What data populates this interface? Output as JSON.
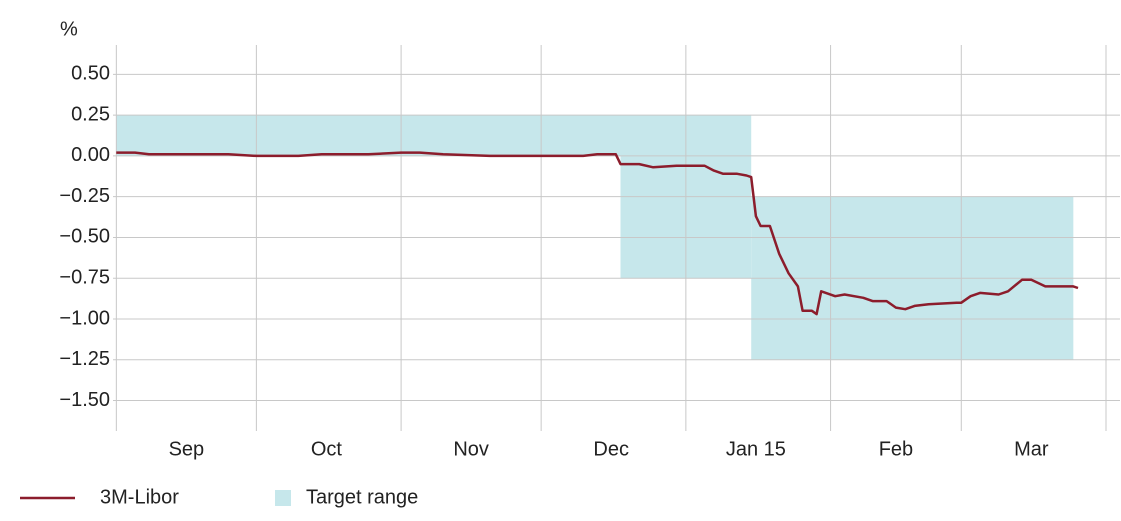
{
  "chart_data": {
    "type": "line",
    "y_label": "%",
    "xlim": [
      "2014-08-27",
      "2015-04-04"
    ],
    "ylim": [
      -1.65,
      0.68
    ],
    "yticks": [
      {
        "value": 0.5,
        "label": "0.50"
      },
      {
        "value": 0.25,
        "label": "0.25"
      },
      {
        "value": 0,
        "label": "0.00"
      },
      {
        "value": -0.25,
        "label": "−0.25"
      },
      {
        "value": -0.5,
        "label": "−0.50"
      },
      {
        "value": -0.75,
        "label": "−0.75"
      },
      {
        "value": -1,
        "label": "−1.00"
      },
      {
        "value": -1.25,
        "label": "−1.25"
      },
      {
        "value": -1.5,
        "label": "−1.50"
      }
    ],
    "xgrid": [
      "2014-09-01",
      "2014-10-01",
      "2014-11-01",
      "2014-12-01",
      "2015-01-01",
      "2015-02-01",
      "2015-03-01",
      "2015-04-01"
    ],
    "xticks": [
      {
        "value": "2014-09-16",
        "label": "Sep"
      },
      {
        "value": "2014-10-16",
        "label": "Oct"
      },
      {
        "value": "2014-11-16",
        "label": "Nov"
      },
      {
        "value": "2014-12-16",
        "label": "Dec"
      },
      {
        "value": "2015-01-16",
        "label": "Jan 15"
      },
      {
        "value": "2015-02-15",
        "label": "Feb"
      },
      {
        "value": "2015-03-16",
        "label": "Mar"
      }
    ],
    "grid": true,
    "band": {
      "name": "Target range",
      "color": "#c6e7eb",
      "edges": [
        "2014-09-01",
        "2014-12-18",
        "2015-01-15",
        "2015-03-25"
      ],
      "upper": [
        0.25,
        0.25,
        -0.25
      ],
      "lower": [
        0,
        -0.75,
        -1.25
      ]
    },
    "series": [
      {
        "name": "3M-Libor",
        "color": "#8c1d2c",
        "x": [
          "2014-09-01",
          "2014-09-05",
          "2014-09-08",
          "2014-09-15",
          "2014-09-25",
          "2014-10-01",
          "2014-10-10",
          "2014-10-15",
          "2014-10-25",
          "2014-11-01",
          "2014-11-05",
          "2014-11-10",
          "2014-11-20",
          "2014-12-01",
          "2014-12-10",
          "2014-12-13",
          "2014-12-17",
          "2014-12-18",
          "2014-12-22",
          "2014-12-25",
          "2014-12-30",
          "2015-01-05",
          "2015-01-07",
          "2015-01-09",
          "2015-01-12",
          "2015-01-14",
          "2015-01-15",
          "2015-01-16",
          "2015-01-17",
          "2015-01-19",
          "2015-01-21",
          "2015-01-23",
          "2015-01-25",
          "2015-01-26",
          "2015-01-28",
          "2015-01-29",
          "2015-01-30",
          "2015-02-02",
          "2015-02-04",
          "2015-02-08",
          "2015-02-10",
          "2015-02-13",
          "2015-02-15",
          "2015-02-17",
          "2015-02-19",
          "2015-02-22",
          "2015-02-28",
          "2015-03-01",
          "2015-03-03",
          "2015-03-05",
          "2015-03-09",
          "2015-03-11",
          "2015-03-14",
          "2015-03-16",
          "2015-03-19",
          "2015-03-25",
          "2015-03-26"
        ],
        "values": [
          0.02,
          0.02,
          0.01,
          0.01,
          0.01,
          0,
          0,
          0.01,
          0.01,
          0.02,
          0.02,
          0.01,
          0,
          0,
          0,
          0.01,
          0.01,
          -0.05,
          -0.05,
          -0.07,
          -0.06,
          -0.06,
          -0.09,
          -0.11,
          -0.11,
          -0.12,
          -0.13,
          -0.37,
          -0.43,
          -0.43,
          -0.6,
          -0.72,
          -0.8,
          -0.95,
          -0.95,
          -0.97,
          -0.83,
          -0.86,
          -0.85,
          -0.87,
          -0.89,
          -0.89,
          -0.93,
          -0.94,
          -0.92,
          -0.91,
          -0.9,
          -0.9,
          -0.86,
          -0.84,
          -0.85,
          -0.83,
          -0.76,
          -0.76,
          -0.8,
          -0.8,
          -0.81
        ]
      }
    ]
  }
}
